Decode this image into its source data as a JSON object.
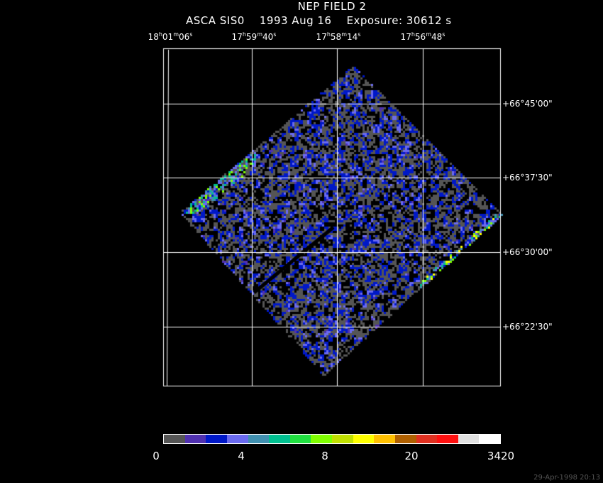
{
  "title": "NEP FIELD 2",
  "subtitle": "ASCA SIS0    1993 Aug 16    Exposure: 30612 s",
  "ra_labels": [
    {
      "h": "18",
      "m": "01",
      "s": "06"
    },
    {
      "h": "17",
      "m": "59",
      "s": "40"
    },
    {
      "h": "17",
      "m": "58",
      "s": "14"
    },
    {
      "h": "17",
      "m": "56",
      "s": "48"
    }
  ],
  "dec_labels": [
    "+66°45'00\"",
    "+66°37'30\"",
    "+66°30'00\"",
    "+66°22'30\""
  ],
  "colorbar": {
    "colors": [
      "#555555",
      "#5030b0",
      "#0018c8",
      "#6a6af0",
      "#4090b0",
      "#00c090",
      "#20e040",
      "#80ff00",
      "#c0e000",
      "#ffff00",
      "#ffc000",
      "#b06000",
      "#e03020",
      "#ff1010",
      "#e0e0e0",
      "#ffffff"
    ],
    "labels": [
      "0",
      "4",
      "8",
      "20",
      "3420"
    ]
  },
  "timestamp": "29-Apr-1998 20:13"
}
